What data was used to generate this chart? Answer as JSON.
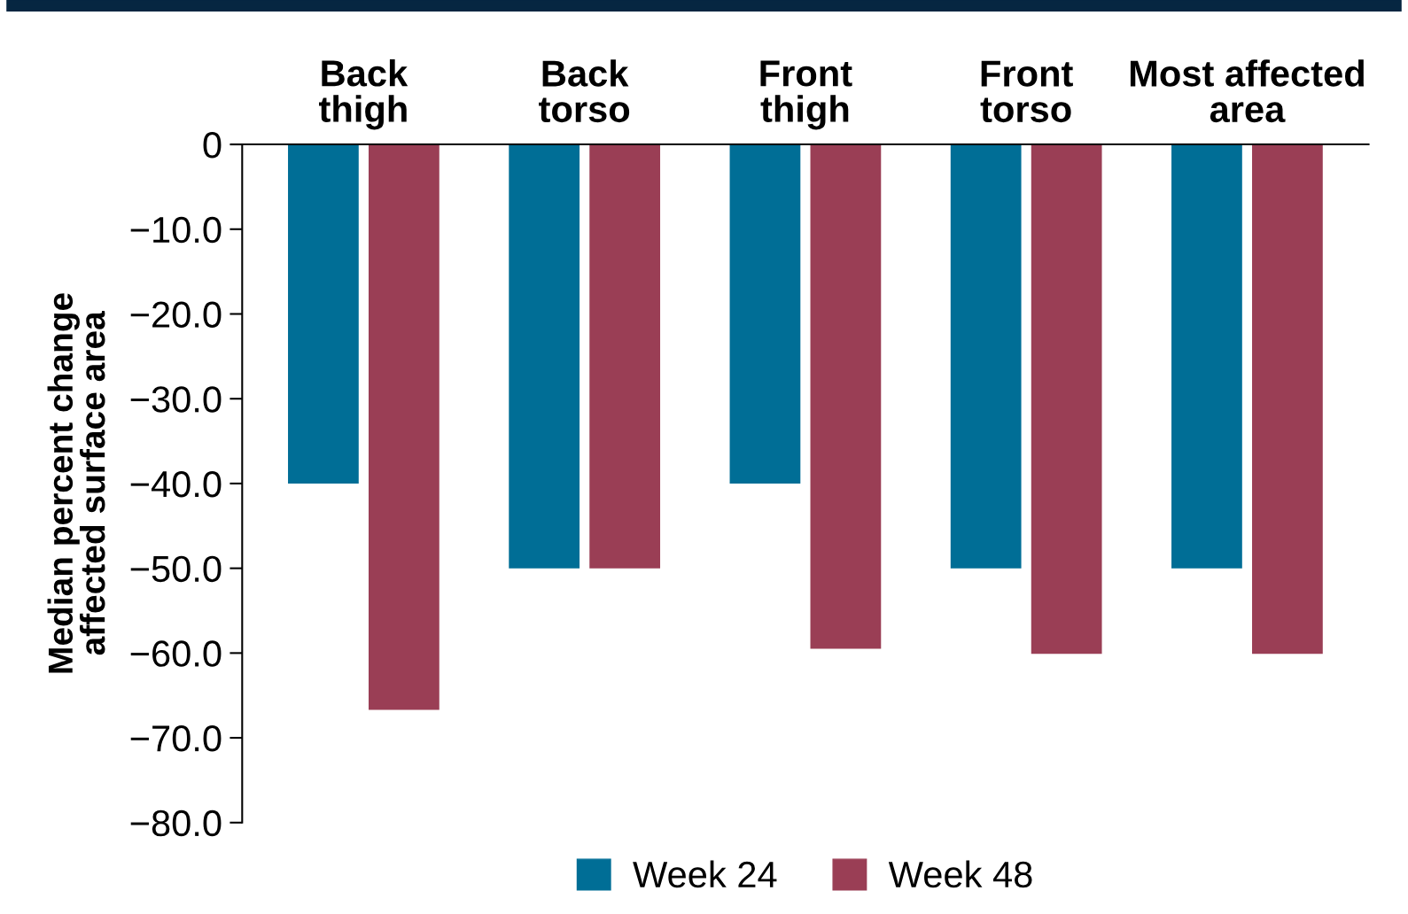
{
  "chart_data": {
    "type": "bar",
    "ylabel": "Median percent change\naffected surface area",
    "categories": [
      "Back\nthigh",
      "Back\ntorso",
      "Front\nthigh",
      "Front\ntorso",
      "Most affected\narea"
    ],
    "series": [
      {
        "name": "Week 24",
        "color": "#006e96",
        "values": [
          -40,
          -50,
          -40,
          -50,
          -50
        ]
      },
      {
        "name": "Week 48",
        "color": "#9a3e55",
        "values": [
          -66.7,
          -50,
          -59.5,
          -60.1,
          -60.1
        ]
      }
    ],
    "ylim": [
      -80,
      0
    ],
    "yticks": [
      0,
      {
        "value": -10,
        "label": "−10.0"
      },
      {
        "value": -20,
        "label": "−20.0"
      },
      {
        "value": -30,
        "label": "−30.0"
      },
      {
        "value": -40,
        "label": "−40.0"
      },
      {
        "value": -50,
        "label": "−50.0"
      },
      {
        "value": -60,
        "label": "−60.0"
      },
      {
        "value": -70,
        "label": "−70.0"
      },
      {
        "value": -80,
        "label": "−80.0"
      }
    ],
    "legend": "bottom",
    "grid": false
  }
}
